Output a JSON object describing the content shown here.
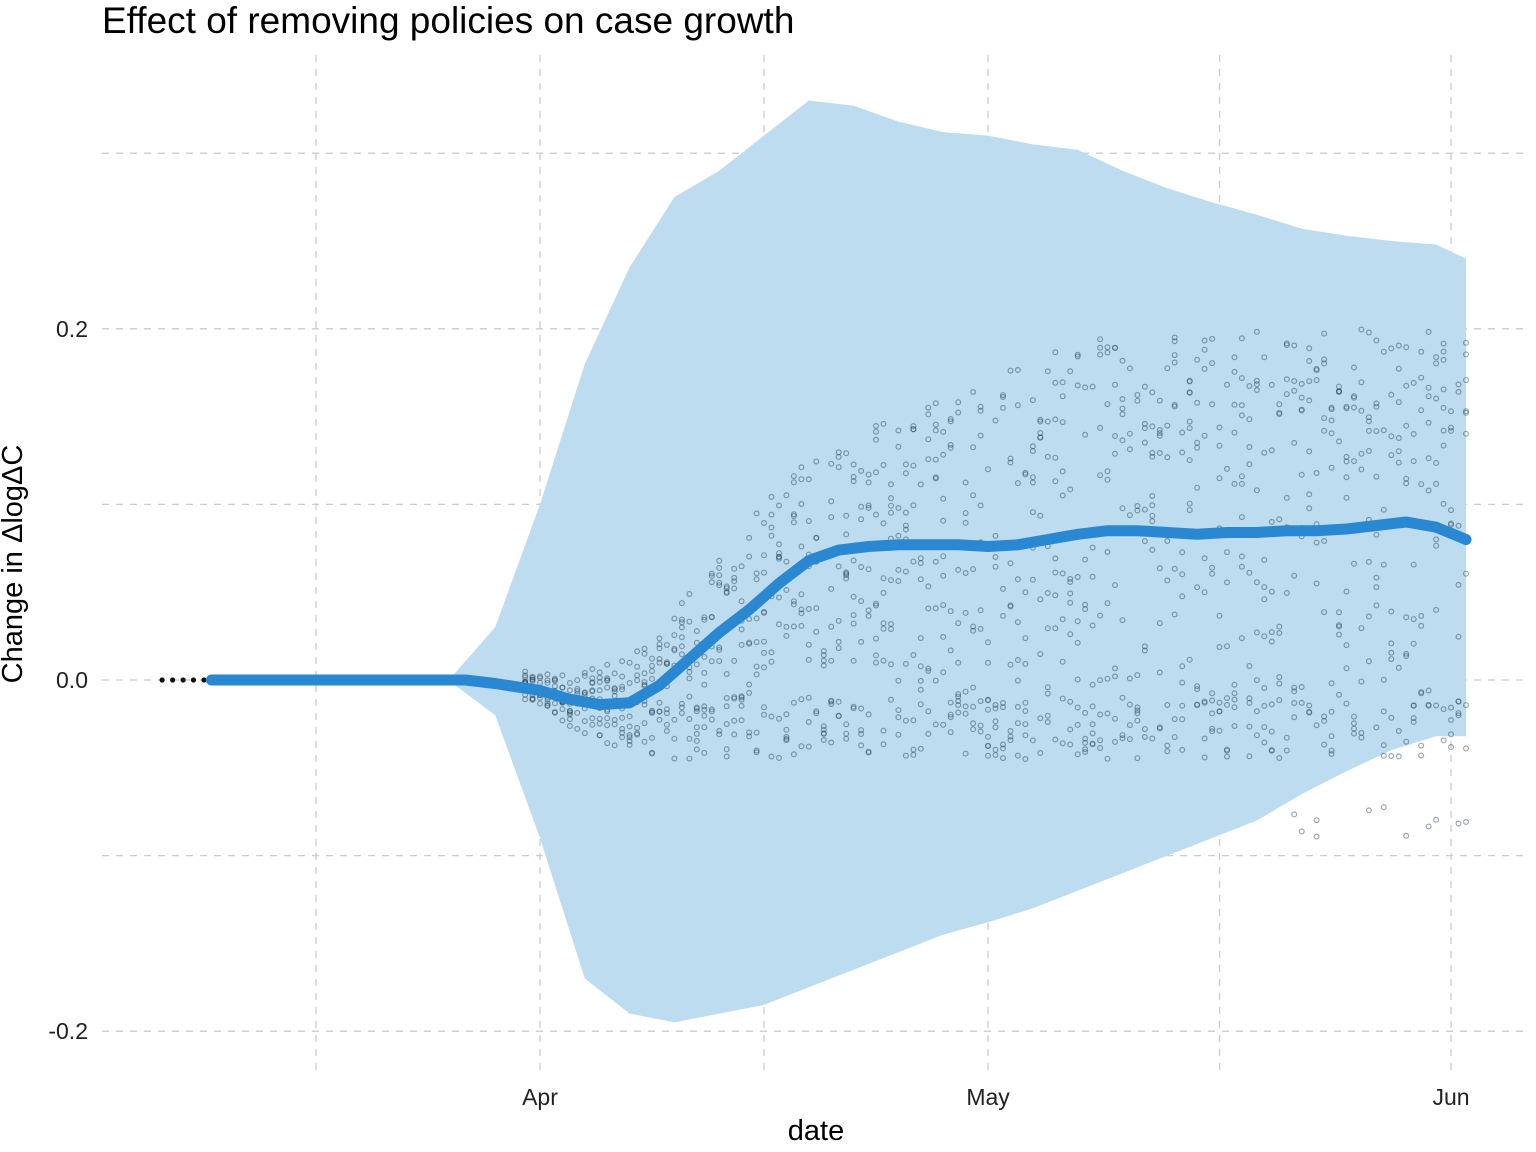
{
  "chart_data": {
    "type": "line",
    "title": "Effect of removing policies on case growth",
    "xlabel": "date",
    "ylabel": "Change in ΔlogΔC",
    "x_ticks": [
      {
        "label": "Apr",
        "date": "2020-04-01"
      },
      {
        "label": "May",
        "date": "2020-05-01"
      },
      {
        "label": "Jun",
        "date": "2020-06-01"
      }
    ],
    "y_ticks": [
      {
        "label": "-0.2",
        "value": -0.2
      },
      {
        "label": "0.0",
        "value": 0.0
      },
      {
        "label": "0.2",
        "value": 0.2
      }
    ],
    "xlim": [
      "2020-03-01",
      "2020-06-03"
    ],
    "ylim": [
      -0.22,
      0.3
    ],
    "grid": true,
    "colors": {
      "line": "#2a88d2",
      "band": "#bddcf0",
      "points": "#1f3f52",
      "grid": "#cccccc"
    },
    "series": [
      {
        "kind": "mean-line",
        "x": [
          "2020-03-10",
          "2020-03-27",
          "2020-03-29",
          "2020-04-01",
          "2020-04-03",
          "2020-04-05",
          "2020-04-07",
          "2020-04-09",
          "2020-04-11",
          "2020-04-13",
          "2020-04-15",
          "2020-04-17",
          "2020-04-19",
          "2020-04-21",
          "2020-04-23",
          "2020-04-25",
          "2020-04-27",
          "2020-04-29",
          "2020-05-01",
          "2020-05-03",
          "2020-05-05",
          "2020-05-07",
          "2020-05-09",
          "2020-05-11",
          "2020-05-13",
          "2020-05-15",
          "2020-05-17",
          "2020-05-19",
          "2020-05-21",
          "2020-05-23",
          "2020-05-25",
          "2020-05-27",
          "2020-05-29",
          "2020-05-31",
          "2020-06-02"
        ],
        "y": [
          0.0,
          0.0,
          -0.002,
          -0.006,
          -0.011,
          -0.014,
          -0.013,
          -0.003,
          0.012,
          0.027,
          0.04,
          0.055,
          0.068,
          0.074,
          0.076,
          0.077,
          0.077,
          0.077,
          0.076,
          0.077,
          0.08,
          0.083,
          0.085,
          0.085,
          0.084,
          0.083,
          0.084,
          0.084,
          0.085,
          0.085,
          0.086,
          0.088,
          0.09,
          0.087,
          0.08
        ]
      },
      {
        "kind": "confidence-band",
        "x": [
          "2020-03-26",
          "2020-03-29",
          "2020-04-01",
          "2020-04-04",
          "2020-04-07",
          "2020-04-10",
          "2020-04-13",
          "2020-04-16",
          "2020-04-19",
          "2020-04-22",
          "2020-04-25",
          "2020-04-28",
          "2020-05-01",
          "2020-05-04",
          "2020-05-07",
          "2020-05-10",
          "2020-05-13",
          "2020-05-16",
          "2020-05-19",
          "2020-05-22",
          "2020-05-25",
          "2020-05-28",
          "2020-05-31",
          "2020-06-02"
        ],
        "lower": [
          -0.001,
          -0.02,
          -0.09,
          -0.17,
          -0.19,
          -0.195,
          -0.19,
          -0.185,
          -0.175,
          -0.165,
          -0.155,
          -0.145,
          -0.138,
          -0.13,
          -0.12,
          -0.11,
          -0.1,
          -0.09,
          -0.08,
          -0.065,
          -0.052,
          -0.04,
          -0.032,
          -0.032
        ],
        "upper": [
          0.001,
          0.03,
          0.1,
          0.18,
          0.235,
          0.275,
          0.29,
          0.31,
          0.33,
          0.327,
          0.318,
          0.312,
          0.31,
          0.305,
          0.302,
          0.29,
          0.28,
          0.272,
          0.265,
          0.257,
          0.253,
          0.25,
          0.248,
          0.24
        ]
      }
    ]
  }
}
